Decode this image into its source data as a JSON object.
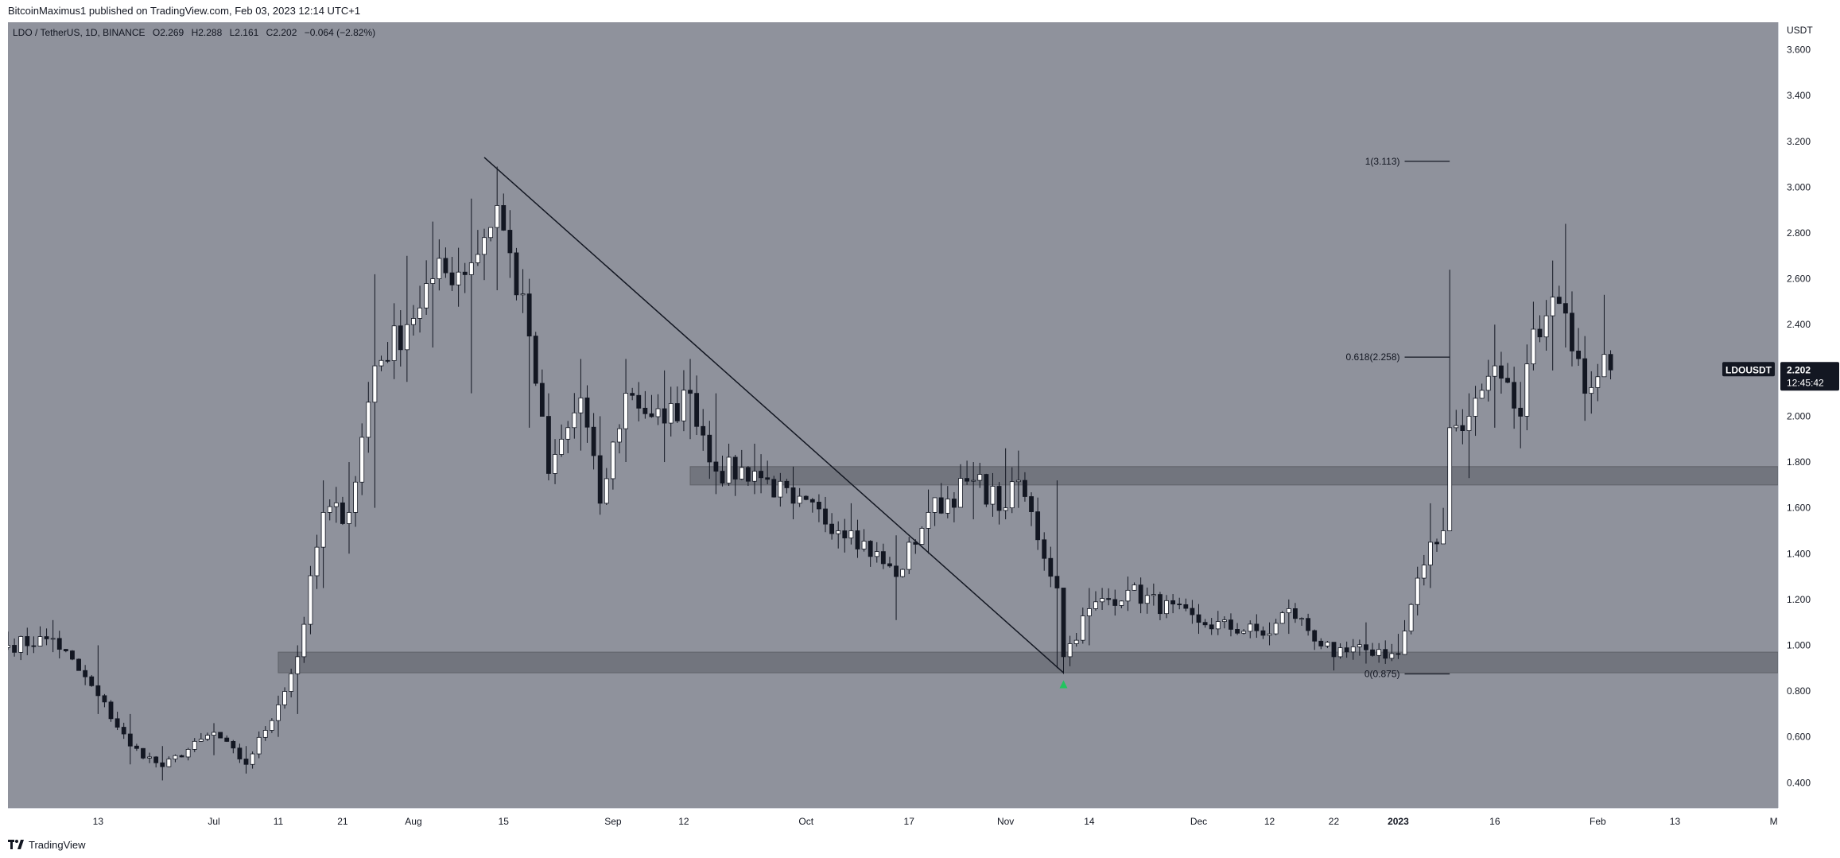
{
  "header": {
    "publisher_text": "BitcoinMaximus1 published on TradingView.com, Feb 03, 2023 12:14 UTC+1"
  },
  "legend": {
    "symbol": "LDO / TetherUS, 1D, BINANCE",
    "o_label": "O",
    "o_value": "2.269",
    "h_label": "H",
    "h_value": "2.288",
    "l_label": "L",
    "l_value": "2.161",
    "c_label": "C",
    "c_value": "2.202",
    "change": "−0.064 (−2.82%)"
  },
  "price_tag": {
    "symbol": "LDOUSDT",
    "price": "2.202",
    "countdown": "12:45:42"
  },
  "footer": {
    "brand": "TradingView"
  },
  "colors": {
    "background": "#8f929c",
    "up": "#ffffff",
    "down": "#131722",
    "zone": "#6d7079",
    "marker": "#22c55e"
  },
  "chart_data": {
    "type": "candlestick",
    "yunit": "USDT",
    "ylim": [
      0.29,
      3.72
    ],
    "y_ticks": [
      "3.600",
      "3.400",
      "3.200",
      "3.000",
      "2.800",
      "2.600",
      "2.400",
      "2.200",
      "2.000",
      "1.800",
      "1.600",
      "1.400",
      "1.200",
      "1.000",
      "0.800",
      "0.600",
      "0.400"
    ],
    "x_ticks": [
      {
        "label": "13",
        "date": "2022-06-13"
      },
      {
        "label": "Jul",
        "date": "2022-07-01"
      },
      {
        "label": "11",
        "date": "2022-07-11"
      },
      {
        "label": "21",
        "date": "2022-07-21"
      },
      {
        "label": "Aug",
        "date": "2022-08-01"
      },
      {
        "label": "15",
        "date": "2022-08-15"
      },
      {
        "label": "Sep",
        "date": "2022-09-01"
      },
      {
        "label": "12",
        "date": "2022-09-12"
      },
      {
        "label": "Oct",
        "date": "2022-10-01"
      },
      {
        "label": "17",
        "date": "2022-10-17"
      },
      {
        "label": "Nov",
        "date": "2022-11-01"
      },
      {
        "label": "14",
        "date": "2022-11-14"
      },
      {
        "label": "Dec",
        "date": "2022-12-01"
      },
      {
        "label": "12",
        "date": "2022-12-12"
      },
      {
        "label": "22",
        "date": "2022-12-22"
      },
      {
        "label": "2023",
        "date": "2023-01-01"
      },
      {
        "label": "16",
        "date": "2023-01-16"
      },
      {
        "label": "Feb",
        "date": "2023-02-01"
      },
      {
        "label": "13",
        "date": "2023-02-13"
      },
      {
        "label": "Mar",
        "date": "2023-03-01"
      }
    ],
    "xlim": [
      "2022-05-30",
      "2023-03-01"
    ],
    "candles_start": "2022-05-30",
    "anchors": [
      {
        "date": "2022-05-30",
        "close": 1.0,
        "hi": 1.06,
        "lo": 0.98
      },
      {
        "date": "2022-06-06",
        "close": 1.03,
        "hi": 1.11,
        "lo": 0.97
      },
      {
        "date": "2022-06-13",
        "close": 0.78,
        "hi": 1.0,
        "lo": 0.7
      },
      {
        "date": "2022-06-18",
        "close": 0.56,
        "hi": 0.7,
        "lo": 0.48
      },
      {
        "date": "2022-06-23",
        "close": 0.47,
        "hi": 0.56,
        "lo": 0.41
      },
      {
        "date": "2022-07-01",
        "close": 0.62,
        "hi": 0.66,
        "lo": 0.52
      },
      {
        "date": "2022-07-06",
        "close": 0.48,
        "hi": 0.56,
        "lo": 0.44
      },
      {
        "date": "2022-07-11",
        "close": 0.74,
        "hi": 0.78,
        "lo": 0.6
      },
      {
        "date": "2022-07-14",
        "close": 0.95,
        "hi": 1.0,
        "lo": 0.7
      },
      {
        "date": "2022-07-18",
        "close": 1.58,
        "hi": 1.72,
        "lo": 1.25
      },
      {
        "date": "2022-07-22",
        "close": 1.58,
        "hi": 1.8,
        "lo": 1.4
      },
      {
        "date": "2022-07-26",
        "close": 2.22,
        "hi": 2.62,
        "lo": 1.6
      },
      {
        "date": "2022-07-31",
        "close": 2.4,
        "hi": 2.7,
        "lo": 2.15
      },
      {
        "date": "2022-08-04",
        "close": 2.6,
        "hi": 2.85,
        "lo": 2.3
      },
      {
        "date": "2022-08-10",
        "close": 2.67,
        "hi": 2.95,
        "lo": 2.1
      },
      {
        "date": "2022-08-14",
        "close": 2.92,
        "hi": 3.09,
        "lo": 2.55
      },
      {
        "date": "2022-08-19",
        "close": 2.35,
        "hi": 2.6,
        "lo": 1.95
      },
      {
        "date": "2022-08-22",
        "close": 1.75,
        "hi": 2.1,
        "lo": 1.72
      },
      {
        "date": "2022-08-27",
        "close": 2.08,
        "hi": 2.25,
        "lo": 1.85
      },
      {
        "date": "2022-08-30",
        "close": 1.62,
        "hi": 2.0,
        "lo": 1.57
      },
      {
        "date": "2022-09-03",
        "close": 2.1,
        "hi": 2.25,
        "lo": 1.8
      },
      {
        "date": "2022-09-09",
        "close": 1.97,
        "hi": 2.2,
        "lo": 1.8
      },
      {
        "date": "2022-09-13",
        "close": 2.1,
        "hi": 2.25,
        "lo": 1.9
      },
      {
        "date": "2022-09-17",
        "close": 1.76,
        "hi": 2.1,
        "lo": 1.66
      },
      {
        "date": "2022-09-23",
        "close": 1.76,
        "hi": 1.88,
        "lo": 1.66
      },
      {
        "date": "2022-09-29",
        "close": 1.62,
        "hi": 1.78,
        "lo": 1.55
      },
      {
        "date": "2022-10-08",
        "close": 1.5,
        "hi": 1.62,
        "lo": 1.44
      },
      {
        "date": "2022-10-15",
        "close": 1.3,
        "hi": 1.48,
        "lo": 1.11
      },
      {
        "date": "2022-10-20",
        "close": 1.58,
        "hi": 1.68,
        "lo": 1.4
      },
      {
        "date": "2022-10-27",
        "close": 1.72,
        "hi": 1.8,
        "lo": 1.55
      },
      {
        "date": "2022-11-01",
        "close": 1.6,
        "hi": 1.86,
        "lo": 1.55
      },
      {
        "date": "2022-11-03",
        "close": 1.72,
        "hi": 1.85,
        "lo": 1.6
      },
      {
        "date": "2022-11-09",
        "close": 1.25,
        "hi": 1.72,
        "lo": 0.9
      },
      {
        "date": "2022-11-10",
        "close": 0.95,
        "hi": 1.1,
        "lo": 0.875
      },
      {
        "date": "2022-11-14",
        "close": 1.16,
        "hi": 1.25,
        "lo": 1.0
      },
      {
        "date": "2022-11-20",
        "close": 1.24,
        "hi": 1.3,
        "lo": 1.15
      },
      {
        "date": "2022-12-01",
        "close": 1.1,
        "hi": 1.18,
        "lo": 1.05
      },
      {
        "date": "2022-12-12",
        "close": 1.05,
        "hi": 1.1,
        "lo": 1.0
      },
      {
        "date": "2022-12-15",
        "close": 1.16,
        "hi": 1.2,
        "lo": 1.05
      },
      {
        "date": "2022-12-22",
        "close": 0.95,
        "hi": 1.0,
        "lo": 0.89
      },
      {
        "date": "2022-12-27",
        "close": 0.98,
        "hi": 1.1,
        "lo": 0.92
      },
      {
        "date": "2023-01-01",
        "close": 0.96,
        "hi": 1.05,
        "lo": 0.94
      },
      {
        "date": "2023-01-06",
        "close": 1.45,
        "hi": 1.62,
        "lo": 1.25
      },
      {
        "date": "2023-01-08",
        "close": 1.5,
        "hi": 1.6,
        "lo": 1.45
      },
      {
        "date": "2023-01-09",
        "close": 1.95,
        "hi": 2.64,
        "lo": 1.7
      },
      {
        "date": "2023-01-12",
        "close": 2.0,
        "hi": 2.1,
        "lo": 1.73
      },
      {
        "date": "2023-01-16",
        "close": 2.22,
        "hi": 2.4,
        "lo": 1.95
      },
      {
        "date": "2023-01-20",
        "close": 2.0,
        "hi": 2.15,
        "lo": 1.86
      },
      {
        "date": "2023-01-22",
        "close": 2.38,
        "hi": 2.5,
        "lo": 2.2
      },
      {
        "date": "2023-01-25",
        "close": 2.52,
        "hi": 2.68,
        "lo": 2.2
      },
      {
        "date": "2023-01-27",
        "close": 2.45,
        "hi": 2.84,
        "lo": 2.3
      },
      {
        "date": "2023-01-30",
        "close": 2.1,
        "hi": 2.35,
        "lo": 1.98
      },
      {
        "date": "2023-02-02",
        "close": 2.27,
        "hi": 2.53,
        "lo": 2.2
      },
      {
        "date": "2023-02-03",
        "close": 2.202,
        "hi": 2.288,
        "lo": 2.161
      }
    ],
    "zones": [
      {
        "name": "resistance-zone",
        "from_date": "2022-09-13",
        "to_date": "2023-03-01",
        "y_low": 1.7,
        "y_high": 1.78
      },
      {
        "name": "support-zone",
        "from_date": "2022-07-11",
        "to_date": "2023-03-01",
        "y_low": 0.88,
        "y_high": 0.97
      }
    ],
    "trendline": {
      "start": {
        "date": "2022-08-12",
        "y": 3.13
      },
      "end": {
        "date": "2022-11-10",
        "y": 0.88
      }
    },
    "fibonacci": [
      {
        "label": "1(3.113)",
        "value": 3.113
      },
      {
        "label": "0.618(2.258)",
        "value": 2.258
      },
      {
        "label": "0(0.875)",
        "value": 0.875
      }
    ],
    "fib_line_from": "2023-01-02",
    "fib_line_to": "2023-01-09",
    "marker": {
      "date": "2022-11-10",
      "y": 0.83,
      "shape": "triangle-up"
    }
  }
}
